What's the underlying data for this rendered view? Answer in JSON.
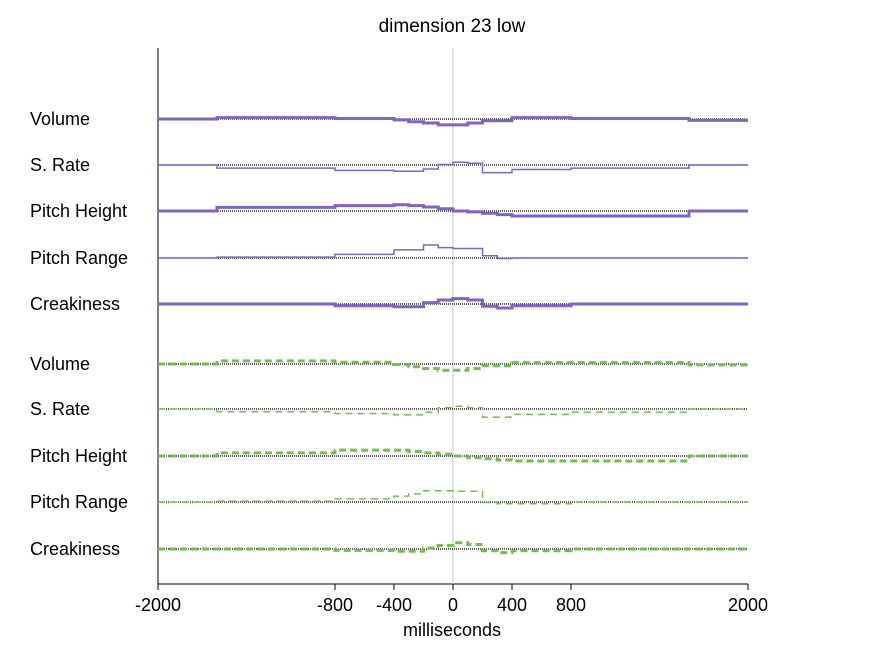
{
  "chart_data": {
    "type": "line",
    "title": "dimension 23 low",
    "xlabel": "milliseconds",
    "xlim": [
      -2000,
      2000
    ],
    "xticks": [
      -2000,
      -800,
      -400,
      0,
      400,
      800,
      2000
    ],
    "grid": false,
    "reference_line_x": 0,
    "groups": [
      {
        "color": "#8064c0",
        "dashed": false,
        "rows": [
          {
            "label": "Volume",
            "weight": "thick",
            "x": [
              -2000,
              -1600,
              -800,
              -400,
              -300,
              -200,
              -100,
              0,
              100,
              200,
              400,
              800,
              1600,
              2000
            ],
            "y": [
              0,
              0.3,
              0.1,
              -0.2,
              -0.6,
              -0.9,
              -1.3,
              -1.3,
              -0.9,
              -0.4,
              0.3,
              0.1,
              -0.3,
              -0.3
            ]
          },
          {
            "label": "S. Rate",
            "weight": "thin",
            "x": [
              -2000,
              -1600,
              -800,
              -400,
              -200,
              -100,
              0,
              100,
              200,
              400,
              800,
              1600,
              2000
            ],
            "y": [
              0,
              -0.7,
              -1.2,
              -1.4,
              -0.9,
              0.1,
              0.6,
              0.4,
              -1.7,
              -1.0,
              -0.7,
              0,
              0
            ]
          },
          {
            "label": "Pitch Height",
            "weight": "thick",
            "x": [
              -2000,
              -1600,
              -800,
              -400,
              -300,
              -200,
              -100,
              0,
              100,
              200,
              300,
              400,
              800,
              1600,
              2000
            ],
            "y": [
              0,
              0.8,
              1.2,
              1.4,
              1.2,
              0.9,
              0.5,
              0,
              -0.2,
              -0.5,
              -0.8,
              -1.1,
              -1.1,
              0,
              0
            ]
          },
          {
            "label": "Pitch Range",
            "weight": "thin",
            "x": [
              -2000,
              -1600,
              -800,
              -400,
              -200,
              -100,
              0,
              200,
              300,
              400,
              800,
              2000
            ],
            "y": [
              0,
              0.2,
              0.8,
              1.8,
              2.9,
              2.3,
              2.1,
              0.5,
              -0.1,
              0,
              0,
              0
            ]
          },
          {
            "label": "Creakiness",
            "weight": "thick",
            "x": [
              -2000,
              -800,
              -400,
              -200,
              -100,
              0,
              100,
              200,
              300,
              400,
              800,
              2000
            ],
            "y": [
              0,
              -0.4,
              -0.6,
              0.3,
              0.9,
              1.2,
              0.9,
              -0.5,
              -0.9,
              -0.4,
              0,
              0
            ]
          }
        ]
      },
      {
        "color": "#72bd52",
        "dashed": true,
        "rows": [
          {
            "label": "Volume",
            "weight": "thick",
            "x": [
              -2000,
              -1600,
              -800,
              -400,
              -300,
              -200,
              -100,
              0,
              100,
              200,
              400,
              800,
              1600,
              2000
            ],
            "y": [
              0,
              0.7,
              0.4,
              -0.1,
              -0.6,
              -1.0,
              -1.4,
              -1.4,
              -1.0,
              -0.4,
              0.3,
              0.3,
              -0.2,
              -0.2
            ]
          },
          {
            "label": "S. Rate",
            "weight": "thin",
            "x": [
              -2000,
              -1600,
              -800,
              -400,
              -200,
              -100,
              0,
              100,
              200,
              400,
              800,
              1600,
              2000
            ],
            "y": [
              0,
              -0.6,
              -1.0,
              -1.3,
              -0.7,
              0.3,
              0.6,
              0.3,
              -1.8,
              -1.2,
              -0.7,
              0,
              0
            ]
          },
          {
            "label": "Pitch Height",
            "weight": "thick",
            "x": [
              -2000,
              -1600,
              -800,
              -400,
              -300,
              -200,
              -100,
              0,
              100,
              200,
              300,
              400,
              800,
              1600,
              2000
            ],
            "y": [
              0,
              0.7,
              1.3,
              1.3,
              1.0,
              0.7,
              0.4,
              0,
              -0.4,
              -0.6,
              -0.9,
              -1.1,
              -1.1,
              0,
              0
            ]
          },
          {
            "label": "Pitch Range",
            "weight": "thin",
            "x": [
              -2000,
              -1600,
              -800,
              -400,
              -300,
              -200,
              0,
              200,
              300,
              400,
              800,
              2000
            ],
            "y": [
              0,
              0.2,
              0.7,
              1.3,
              1.8,
              2.5,
              2.4,
              -0.1,
              -0.4,
              -0.4,
              0,
              0
            ]
          },
          {
            "label": "Creakiness",
            "weight": "thick",
            "x": [
              -2000,
              -800,
              -400,
              -200,
              -100,
              0,
              100,
              200,
              300,
              400,
              800,
              2000
            ],
            "y": [
              0,
              -0.3,
              -0.5,
              0.2,
              0.8,
              1.4,
              1.0,
              -0.4,
              -0.8,
              -0.4,
              0,
              0
            ]
          }
        ]
      }
    ]
  }
}
